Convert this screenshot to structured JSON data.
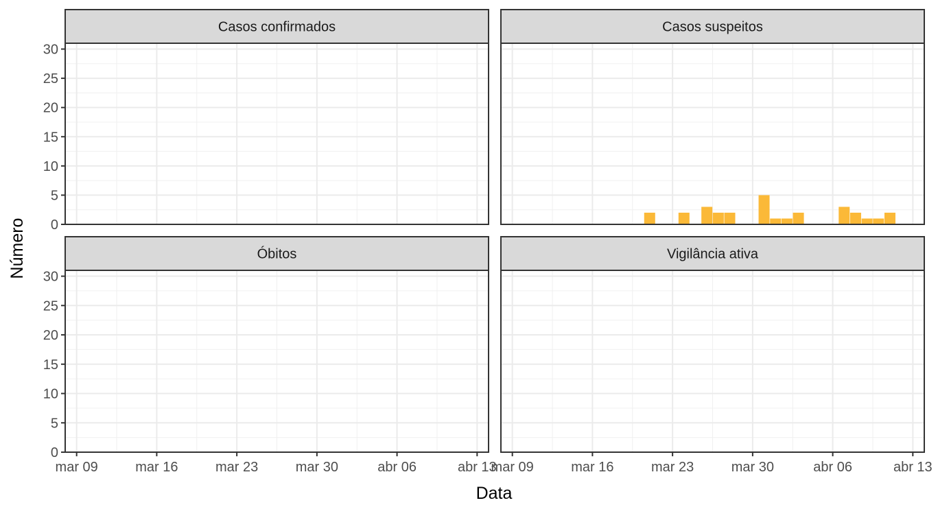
{
  "chart_data": {
    "type": "bar",
    "layout": "facet-grid-2x2",
    "xlabel": "Data",
    "ylabel": "Número",
    "x_axis_type": "date",
    "xlim": [
      "2020-03-08",
      "2020-04-14"
    ],
    "ylim": [
      0,
      31
    ],
    "y_ticks": [
      0,
      5,
      10,
      15,
      20,
      25,
      30
    ],
    "x_ticks": [
      {
        "date": "2020-03-09",
        "label": "mar 09"
      },
      {
        "date": "2020-03-16",
        "label": "mar 16"
      },
      {
        "date": "2020-03-23",
        "label": "mar 23"
      },
      {
        "date": "2020-03-30",
        "label": "mar 30"
      },
      {
        "date": "2020-04-06",
        "label": "abr 06"
      },
      {
        "date": "2020-04-13",
        "label": "abr 13"
      }
    ],
    "grid": true,
    "panels": [
      {
        "title": "Casos confirmados",
        "color": "#F8766D",
        "values": []
      },
      {
        "title": "Casos suspeitos",
        "color": "#FBB938",
        "values": [
          {
            "date": "2020-03-21",
            "value": 2
          },
          {
            "date": "2020-03-24",
            "value": 2
          },
          {
            "date": "2020-03-26",
            "value": 3
          },
          {
            "date": "2020-03-27",
            "value": 2
          },
          {
            "date": "2020-03-28",
            "value": 2
          },
          {
            "date": "2020-03-31",
            "value": 5
          },
          {
            "date": "2020-04-01",
            "value": 1
          },
          {
            "date": "2020-04-02",
            "value": 1
          },
          {
            "date": "2020-04-03",
            "value": 2
          },
          {
            "date": "2020-04-07",
            "value": 3
          },
          {
            "date": "2020-04-08",
            "value": 2
          },
          {
            "date": "2020-04-09",
            "value": 1
          },
          {
            "date": "2020-04-10",
            "value": 1
          },
          {
            "date": "2020-04-11",
            "value": 2
          }
        ]
      },
      {
        "title": "Óbitos",
        "color": "#00BA38",
        "values": []
      },
      {
        "title": "Vigilância ativa",
        "color": "#9D8FE0",
        "values": []
      }
    ]
  }
}
